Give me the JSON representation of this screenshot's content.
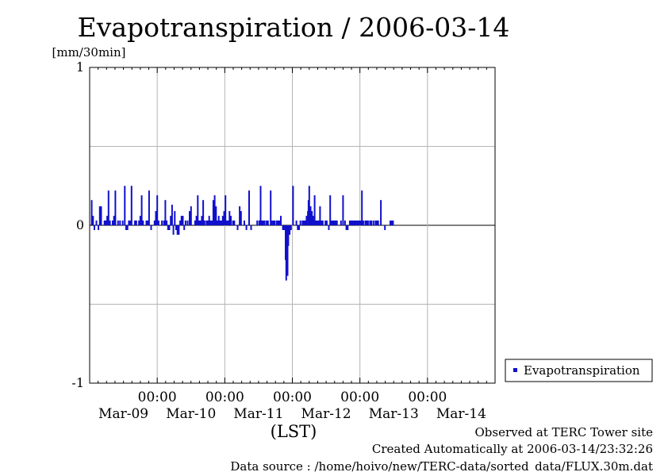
{
  "chart_data": {
    "type": "bar",
    "title": "Evapotranspiration / 2006-03-14",
    "ylabel": "[mm/30min]",
    "xlabel": "(LST)",
    "ylim": [
      -1,
      1
    ],
    "yticks": [
      {
        "value": 1,
        "label": "1"
      },
      {
        "value": 0,
        "label": "0"
      },
      {
        "value": -1,
        "label": "-1"
      }
    ],
    "ygrid": [
      0.5,
      -0.5
    ],
    "xlim_days": [
      8.5,
      14.5
    ],
    "xticks": [
      {
        "time": "00:00",
        "day": 9.5
      },
      {
        "time": "00:00",
        "day": 10.5
      },
      {
        "time": "00:00",
        "day": 11.5
      },
      {
        "time": "00:00",
        "day": 12.5
      },
      {
        "time": "00:00",
        "day": 13.5
      }
    ],
    "day_labels": [
      {
        "label": "Mar-09",
        "day": 9
      },
      {
        "label": "Mar-10",
        "day": 10
      },
      {
        "label": "Mar-11",
        "day": 11
      },
      {
        "label": "Mar-12",
        "day": 12
      },
      {
        "label": "Mar-13",
        "day": 13
      },
      {
        "label": "Mar-14",
        "day": 14
      }
    ],
    "grid": true,
    "legend": {
      "position": "right",
      "entries": [
        {
          "name": "Evapotranspiration",
          "color": "#1010cc"
        }
      ]
    },
    "series": [
      {
        "name": "Evapotranspiration",
        "color": "#1010cc",
        "points": [
          {
            "day": 8.53,
            "value": 0.16
          },
          {
            "day": 8.55,
            "value": 0.06
          },
          {
            "day": 8.57,
            "value": -0.03
          },
          {
            "day": 8.6,
            "value": 0.03
          },
          {
            "day": 8.63,
            "value": -0.03
          },
          {
            "day": 8.65,
            "value": 0.12
          },
          {
            "day": 8.67,
            "value": 0.12
          },
          {
            "day": 8.72,
            "value": 0.03
          },
          {
            "day": 8.74,
            "value": 0.03
          },
          {
            "day": 8.76,
            "value": 0.06
          },
          {
            "day": 8.78,
            "value": 0.22
          },
          {
            "day": 8.8,
            "value": 0.03
          },
          {
            "day": 8.84,
            "value": 0.03
          },
          {
            "day": 8.86,
            "value": 0.06
          },
          {
            "day": 8.88,
            "value": 0.22
          },
          {
            "day": 8.92,
            "value": 0.03
          },
          {
            "day": 8.95,
            "value": 0.03
          },
          {
            "day": 8.99,
            "value": 0.03
          },
          {
            "day": 9.02,
            "value": 0.25
          },
          {
            "day": 9.04,
            "value": -0.03
          },
          {
            "day": 9.06,
            "value": -0.03
          },
          {
            "day": 9.08,
            "value": 0.03
          },
          {
            "day": 9.1,
            "value": 0.03
          },
          {
            "day": 9.12,
            "value": 0.25
          },
          {
            "day": 9.17,
            "value": 0.03
          },
          {
            "day": 9.19,
            "value": 0.03
          },
          {
            "day": 9.23,
            "value": 0.03
          },
          {
            "day": 9.25,
            "value": 0.06
          },
          {
            "day": 9.27,
            "value": 0.19
          },
          {
            "day": 9.29,
            "value": 0.03
          },
          {
            "day": 9.34,
            "value": 0.03
          },
          {
            "day": 9.36,
            "value": 0.03
          },
          {
            "day": 9.38,
            "value": 0.22
          },
          {
            "day": 9.41,
            "value": -0.03
          },
          {
            "day": 9.46,
            "value": 0.03
          },
          {
            "day": 9.48,
            "value": 0.09
          },
          {
            "day": 9.5,
            "value": 0.19
          },
          {
            "day": 9.52,
            "value": 0.03
          },
          {
            "day": 9.57,
            "value": 0.03
          },
          {
            "day": 9.6,
            "value": 0.03
          },
          {
            "day": 9.62,
            "value": 0.16
          },
          {
            "day": 9.64,
            "value": 0.03
          },
          {
            "day": 9.66,
            "value": -0.03
          },
          {
            "day": 9.68,
            "value": -0.03
          },
          {
            "day": 9.7,
            "value": 0.06
          },
          {
            "day": 9.72,
            "value": 0.13
          },
          {
            "day": 9.74,
            "value": -0.06
          },
          {
            "day": 9.76,
            "value": 0.09
          },
          {
            "day": 9.78,
            "value": -0.03
          },
          {
            "day": 9.8,
            "value": -0.06
          },
          {
            "day": 9.82,
            "value": -0.06
          },
          {
            "day": 9.84,
            "value": 0.03
          },
          {
            "day": 9.86,
            "value": 0.06
          },
          {
            "day": 9.88,
            "value": 0.06
          },
          {
            "day": 9.9,
            "value": -0.03
          },
          {
            "day": 9.92,
            "value": 0.03
          },
          {
            "day": 9.95,
            "value": 0.03
          },
          {
            "day": 9.98,
            "value": 0.09
          },
          {
            "day": 10.0,
            "value": 0.12
          },
          {
            "day": 10.06,
            "value": 0.03
          },
          {
            "day": 10.08,
            "value": 0.06
          },
          {
            "day": 10.1,
            "value": 0.19
          },
          {
            "day": 10.12,
            "value": 0.03
          },
          {
            "day": 10.14,
            "value": 0.03
          },
          {
            "day": 10.16,
            "value": 0.06
          },
          {
            "day": 10.18,
            "value": 0.16
          },
          {
            "day": 10.2,
            "value": 0.03
          },
          {
            "day": 10.23,
            "value": 0.03
          },
          {
            "day": 10.25,
            "value": 0.03
          },
          {
            "day": 10.27,
            "value": 0.06
          },
          {
            "day": 10.29,
            "value": 0.03
          },
          {
            "day": 10.31,
            "value": 0.03
          },
          {
            "day": 10.33,
            "value": 0.16
          },
          {
            "day": 10.35,
            "value": 0.19
          },
          {
            "day": 10.37,
            "value": 0.12
          },
          {
            "day": 10.39,
            "value": 0.03
          },
          {
            "day": 10.41,
            "value": 0.06
          },
          {
            "day": 10.43,
            "value": 0.03
          },
          {
            "day": 10.45,
            "value": 0.03
          },
          {
            "day": 10.47,
            "value": 0.06
          },
          {
            "day": 10.49,
            "value": 0.09
          },
          {
            "day": 10.51,
            "value": 0.19
          },
          {
            "day": 10.53,
            "value": 0.03
          },
          {
            "day": 10.55,
            "value": 0.03
          },
          {
            "day": 10.57,
            "value": 0.09
          },
          {
            "day": 10.59,
            "value": 0.06
          },
          {
            "day": 10.62,
            "value": 0.03
          },
          {
            "day": 10.64,
            "value": 0.03
          },
          {
            "day": 10.69,
            "value": -0.03
          },
          {
            "day": 10.72,
            "value": 0.12
          },
          {
            "day": 10.74,
            "value": 0.09
          },
          {
            "day": 10.79,
            "value": 0.03
          },
          {
            "day": 10.82,
            "value": -0.03
          },
          {
            "day": 10.86,
            "value": 0.22
          },
          {
            "day": 10.89,
            "value": -0.03
          },
          {
            "day": 10.98,
            "value": 0.03
          },
          {
            "day": 11.01,
            "value": 0.03
          },
          {
            "day": 11.03,
            "value": 0.25
          },
          {
            "day": 11.05,
            "value": 0.03
          },
          {
            "day": 11.07,
            "value": 0.03
          },
          {
            "day": 11.09,
            "value": 0.03
          },
          {
            "day": 11.12,
            "value": 0.03
          },
          {
            "day": 11.14,
            "value": 0.03
          },
          {
            "day": 11.18,
            "value": 0.22
          },
          {
            "day": 11.2,
            "value": 0.03
          },
          {
            "day": 11.22,
            "value": 0.03
          },
          {
            "day": 11.24,
            "value": 0.03
          },
          {
            "day": 11.27,
            "value": 0.03
          },
          {
            "day": 11.29,
            "value": 0.03
          },
          {
            "day": 11.31,
            "value": 0.03
          },
          {
            "day": 11.33,
            "value": 0.06
          },
          {
            "day": 11.36,
            "value": -0.03
          },
          {
            "day": 11.38,
            "value": -0.03
          },
          {
            "day": 11.4,
            "value": -0.22
          },
          {
            "day": 11.41,
            "value": -0.35
          },
          {
            "day": 11.43,
            "value": -0.32
          },
          {
            "day": 11.44,
            "value": -0.13
          },
          {
            "day": 11.46,
            "value": -0.06
          },
          {
            "day": 11.48,
            "value": -0.03
          },
          {
            "day": 11.51,
            "value": 0.25
          },
          {
            "day": 11.56,
            "value": 0.03
          },
          {
            "day": 11.58,
            "value": -0.03
          },
          {
            "day": 11.6,
            "value": -0.03
          },
          {
            "day": 11.62,
            "value": 0.03
          },
          {
            "day": 11.65,
            "value": 0.03
          },
          {
            "day": 11.67,
            "value": 0.03
          },
          {
            "day": 11.69,
            "value": 0.03
          },
          {
            "day": 11.71,
            "value": 0.06
          },
          {
            "day": 11.73,
            "value": 0.09
          },
          {
            "day": 11.74,
            "value": 0.16
          },
          {
            "day": 11.75,
            "value": 0.25
          },
          {
            "day": 11.77,
            "value": 0.12
          },
          {
            "day": 11.79,
            "value": 0.09
          },
          {
            "day": 11.81,
            "value": 0.06
          },
          {
            "day": 11.83,
            "value": 0.19
          },
          {
            "day": 11.85,
            "value": 0.03
          },
          {
            "day": 11.87,
            "value": 0.03
          },
          {
            "day": 11.89,
            "value": 0.03
          },
          {
            "day": 11.91,
            "value": 0.12
          },
          {
            "day": 11.93,
            "value": 0.03
          },
          {
            "day": 11.95,
            "value": 0.03
          },
          {
            "day": 11.99,
            "value": 0.03
          },
          {
            "day": 12.01,
            "value": 0.03
          },
          {
            "day": 12.04,
            "value": -0.03
          },
          {
            "day": 12.06,
            "value": 0.19
          },
          {
            "day": 12.08,
            "value": 0.03
          },
          {
            "day": 12.1,
            "value": 0.03
          },
          {
            "day": 12.12,
            "value": 0.03
          },
          {
            "day": 12.14,
            "value": 0.03
          },
          {
            "day": 12.16,
            "value": 0.03
          },
          {
            "day": 12.22,
            "value": 0.03
          },
          {
            "day": 12.25,
            "value": 0.19
          },
          {
            "day": 12.28,
            "value": 0.03
          },
          {
            "day": 12.3,
            "value": -0.03
          },
          {
            "day": 12.32,
            "value": -0.03
          },
          {
            "day": 12.35,
            "value": 0.03
          },
          {
            "day": 12.37,
            "value": 0.03
          },
          {
            "day": 12.39,
            "value": 0.03
          },
          {
            "day": 12.41,
            "value": 0.03
          },
          {
            "day": 12.43,
            "value": 0.03
          },
          {
            "day": 12.45,
            "value": 0.03
          },
          {
            "day": 12.47,
            "value": 0.03
          },
          {
            "day": 12.49,
            "value": 0.03
          },
          {
            "day": 12.51,
            "value": 0.03
          },
          {
            "day": 12.53,
            "value": 0.22
          },
          {
            "day": 12.55,
            "value": 0.03
          },
          {
            "day": 12.58,
            "value": 0.03
          },
          {
            "day": 12.6,
            "value": 0.03
          },
          {
            "day": 12.62,
            "value": 0.03
          },
          {
            "day": 12.65,
            "value": 0.03
          },
          {
            "day": 12.67,
            "value": 0.03
          },
          {
            "day": 12.7,
            "value": 0.03
          },
          {
            "day": 12.73,
            "value": 0.03
          },
          {
            "day": 12.75,
            "value": 0.03
          },
          {
            "day": 12.77,
            "value": 0.03
          },
          {
            "day": 12.81,
            "value": 0.16
          },
          {
            "day": 12.87,
            "value": -0.03
          },
          {
            "day": 12.95,
            "value": 0.03
          },
          {
            "day": 12.97,
            "value": 0.03
          },
          {
            "day": 12.99,
            "value": 0.03
          }
        ]
      }
    ]
  },
  "footer": {
    "line1": "Observed at TERC Tower site",
    "line2": "Created Automatically at 2006-03-14/23:32:26",
    "line3": "Data source : /home/hoivo/new/TERC-data/sorted_data/FLUX.30m.dat"
  }
}
